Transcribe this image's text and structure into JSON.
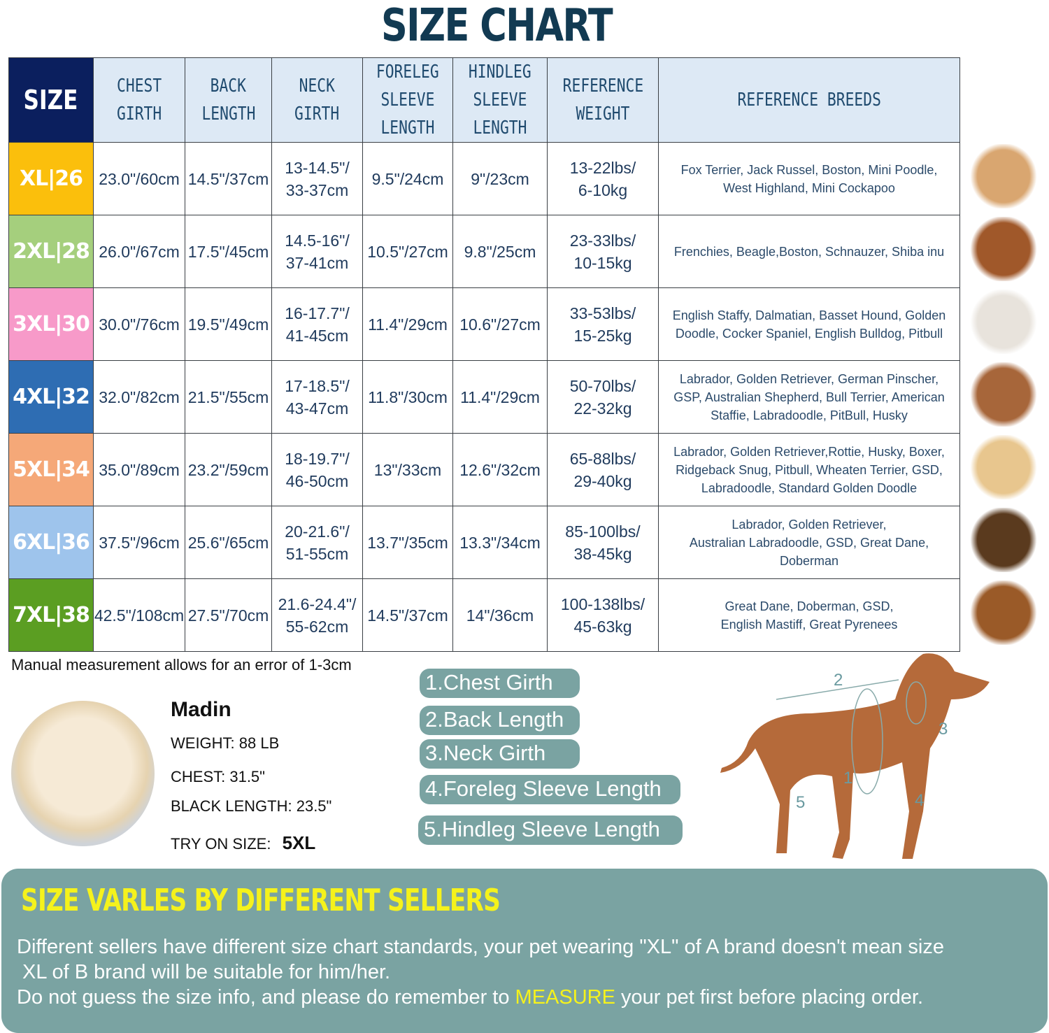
{
  "title": "SIZE CHART",
  "headers": [
    "SIZE",
    "CHEST GIRTH",
    "BACK LENGTH",
    "NECK GIRTH",
    "FORELEG SLEEVE LENGTH",
    "HINDLEG SLEEVE LENGTH",
    "REFERENCE WEIGHT",
    "REFERENCE BREEDS"
  ],
  "header_lines": [
    [
      "SIZE"
    ],
    [
      "CHEST",
      "GIRTH"
    ],
    [
      "BACK",
      "LENGTH"
    ],
    [
      "NECK",
      "GIRTH"
    ],
    [
      "FORELEG",
      "SLEEVE",
      "LENGTH"
    ],
    [
      "HINDLEG",
      "SLEEVE",
      "LENGTH"
    ],
    [
      "REFERENCE",
      "WEIGHT"
    ],
    [
      "REFERENCE  BREEDS"
    ]
  ],
  "rows": [
    {
      "size": "XL|26",
      "color": "#fbbf0c",
      "chest": "23.0\"/60cm",
      "back": "14.5\"/37cm",
      "neck": [
        "13-14.5\"/",
        "33-37cm"
      ],
      "foreleg": "9.5\"/24cm",
      "hindleg": "9\"/23cm",
      "weight": [
        "13-22lbs/",
        "6-10kg"
      ],
      "breeds": [
        "Fox Terrier, Jack Russel, Boston, Mini Poodle,",
        "West Highland, Mini Cockapoo"
      ],
      "dog_icon": "jack-russell-photo"
    },
    {
      "size": "2XL|28",
      "color": "#a5cf7d",
      "chest": "26.0\"/67cm",
      "back": "17.5\"/45cm",
      "neck": [
        "14.5-16\"/",
        "37-41cm"
      ],
      "foreleg": "10.5\"/27cm",
      "hindleg": "9.8\"/25cm",
      "weight": [
        "23-33lbs/",
        "10-15kg"
      ],
      "breeds": [
        "Frenchies, Beagle,Boston, Schnauzer, Shiba inu"
      ],
      "dog_icon": "beagle-photo"
    },
    {
      "size": "3XL|30",
      "color": "#f79ac9",
      "chest": "30.0\"/76cm",
      "back": "19.5\"/49cm",
      "neck": [
        "16-17.7\"/",
        "41-45cm"
      ],
      "foreleg": "11.4\"/29cm",
      "hindleg": "10.6\"/27cm",
      "weight": [
        "33-53lbs/",
        "15-25kg"
      ],
      "breeds": [
        "English Staffy, Dalmatian, Basset Hound, Golden",
        "Doodle, Cocker Spaniel, English Bulldog, Pitbull"
      ],
      "dog_icon": "dalmatian-photo"
    },
    {
      "size": "4XL|32",
      "color": "#2e6db3",
      "chest": "32.0\"/82cm",
      "back": "21.5\"/55cm",
      "neck": [
        "17-18.5\"/",
        "43-47cm"
      ],
      "foreleg": "11.8\"/30cm",
      "hindleg": "11.4\"/29cm",
      "weight": [
        "50-70lbs/",
        "22-32kg"
      ],
      "breeds": [
        "Labrador, Golden Retriever, German Pinscher,",
        "GSP, Australian Shepherd, Bull Terrier, American",
        "Staffie, Labradoodle, PitBull, Husky"
      ],
      "dog_icon": "staffie-photo"
    },
    {
      "size": "5XL|34",
      "color": "#f5a878",
      "chest": "35.0\"/89cm",
      "back": "23.2\"/59cm",
      "neck": [
        "18-19.7\"/",
        "46-50cm"
      ],
      "foreleg": "13\"/33cm",
      "hindleg": "12.6\"/32cm",
      "weight": [
        "65-88lbs/",
        "29-40kg"
      ],
      "breeds": [
        "Labrador, Golden Retriever,Rottie, Husky, Boxer,",
        "Ridgeback Snug, Pitbull, Wheaten Terrier, GSD,",
        "Labradoodle,  Standard Golden Doodle"
      ],
      "dog_icon": "labrador-photo"
    },
    {
      "size": "6XL|36",
      "color": "#9ec4ec",
      "chest": "37.5\"/96cm",
      "back": "25.6\"/65cm",
      "neck": [
        "20-21.6\"/",
        "51-55cm"
      ],
      "foreleg": "13.7\"/35cm",
      "hindleg": "13.3\"/34cm",
      "weight": [
        "85-100lbs/",
        "38-45kg"
      ],
      "breeds": [
        "Labrador, Golden Retriever,",
        "Australian Labradoodle, GSD, Great Dane,",
        "Doberman"
      ],
      "dog_icon": "german-shepherd-photo"
    },
    {
      "size": "7XL|38",
      "color": "#5b9e22",
      "chest": "42.5\"/108cm",
      "back": "27.5\"/70cm",
      "neck": [
        "21.6-24.4\"/",
        "55-62cm"
      ],
      "foreleg": "14.5\"/37cm",
      "hindleg": "14\"/36cm",
      "weight": [
        "100-138lbs/",
        "45-63kg"
      ],
      "breeds": [
        "Great Dane, Doberman, GSD,",
        "English Mastiff, Great Pyrenees"
      ],
      "dog_icon": "mastiff-photo"
    }
  ],
  "note": "Manual measurement allows for an error of 1-3cm",
  "example": {
    "name": "Madin",
    "weight": "WEIGHT: 88 LB",
    "chest": "CHEST: 31.5\"",
    "length": "BLACK LENGTH: 23.5\"",
    "try_label": "TRY ON SIZE:",
    "try_size": "5XL"
  },
  "measures": [
    "1.Chest Girth",
    "2.Back Length",
    "3.Neck Girth",
    "4.Foreleg Sleeve Length",
    "5.Hindleg Sleeve Length"
  ],
  "diagram_labels": [
    "1",
    "2",
    "3",
    "4",
    "5"
  ],
  "panel": {
    "title": "SIZE VARLES BY DIFFERENT SELLERS",
    "line1": "Different sellers have different size chart standards, your pet wearing \"XL\" of A brand doesn't mean size",
    "line2": " XL of B brand will be suitable for him/her.",
    "line3a": "Do not guess the size info, and please do remember to ",
    "line3b": "MEASURE",
    "line3c": " your pet first before placing order."
  },
  "colors": {
    "header_navy": "#0b1f5e",
    "header_bg": "#dde9f5",
    "panel": "#7aa3a2",
    "highlight": "#f5f21c"
  }
}
